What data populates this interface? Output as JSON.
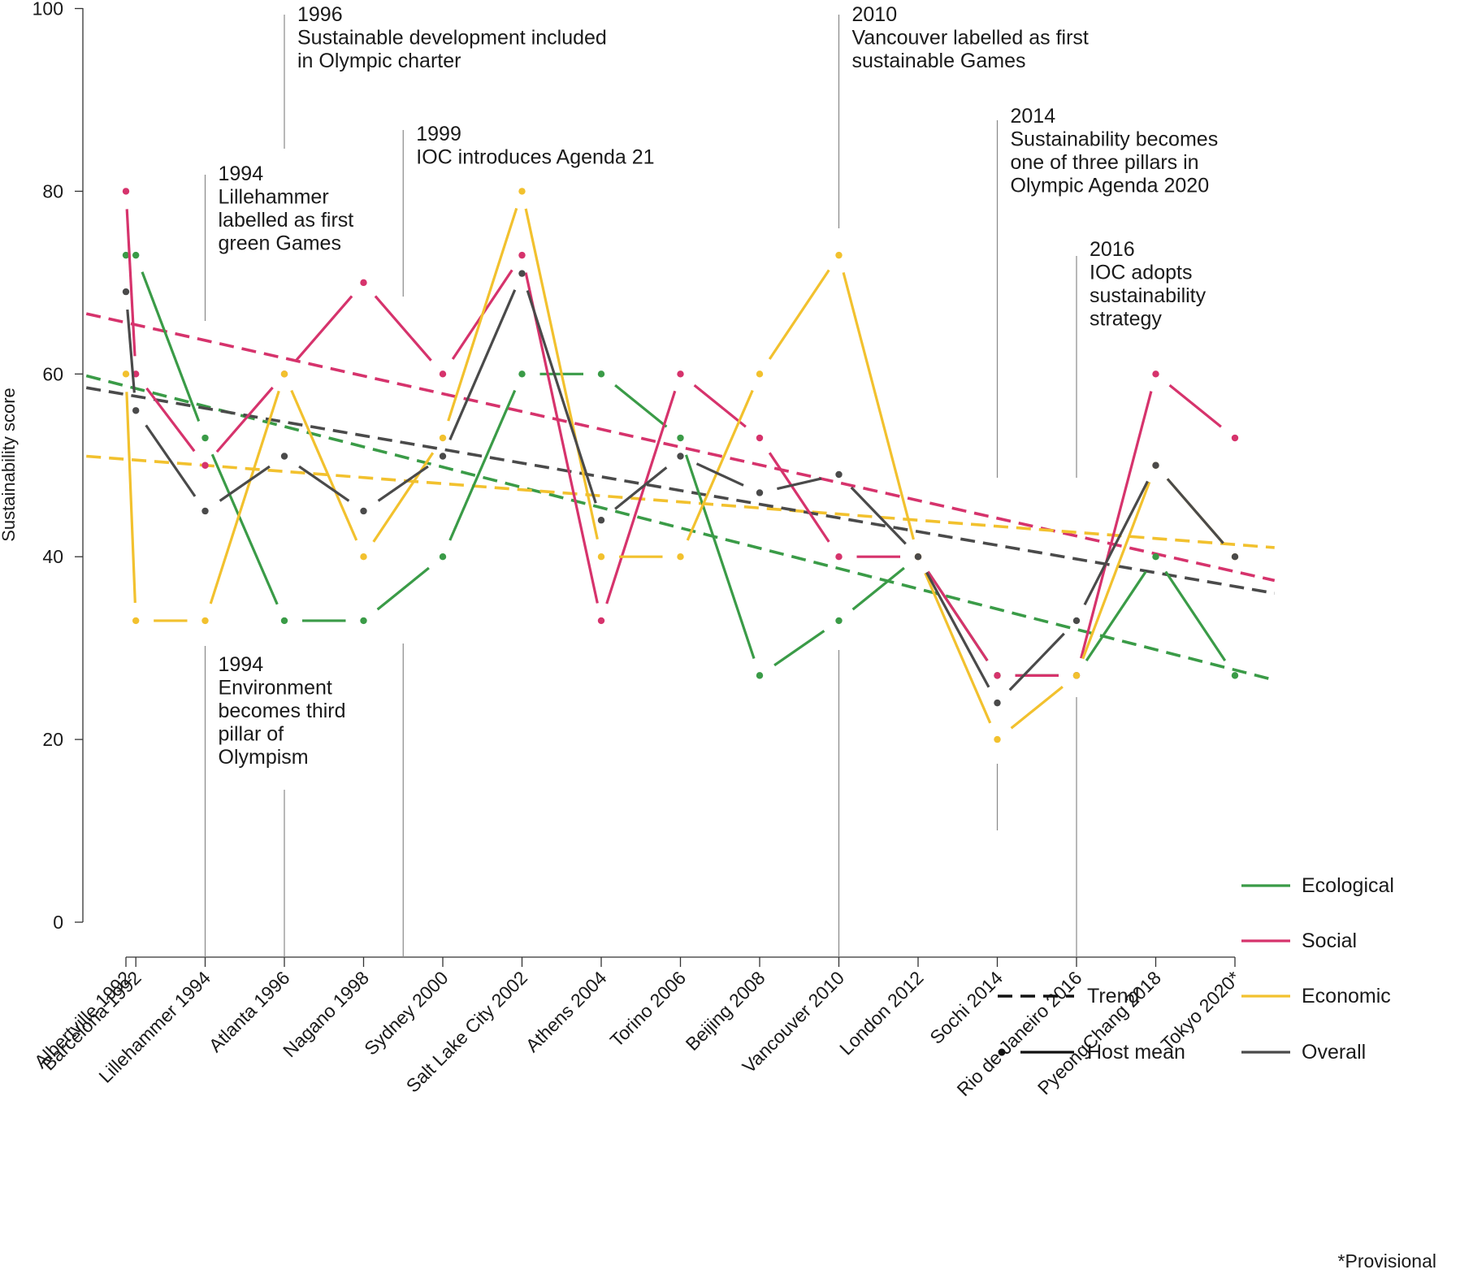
{
  "chart_data": {
    "type": "line",
    "ylabel": "Sustainability score",
    "ylim": [
      0,
      100
    ],
    "yticks": [
      0,
      20,
      40,
      60,
      80,
      100
    ],
    "categories": [
      "Albertville 1992",
      "Barcelona 1992",
      "Lillehammer 1994",
      "Atlanta 1996",
      "Nagano 1998",
      "Sydney 2000",
      "Salt Lake City 2002",
      "Athens 2004",
      "Torino 2006",
      "Beijing 2008",
      "Vancouver 2010",
      "London 2012",
      "Sochi 2014",
      "Rio de Janeiro 2016",
      "PyeongChang 2018",
      "Tokyo 2020*"
    ],
    "x": [
      1992.0,
      1992.25,
      1994,
      1996,
      1998,
      2000,
      2002,
      2004,
      2006,
      2008,
      2010,
      2012,
      2014,
      2016,
      2018,
      2020
    ],
    "series": [
      {
        "name": "Ecological",
        "color": "#3a9b47",
        "values": [
          73,
          73,
          53,
          33,
          33,
          40,
          60,
          60,
          53,
          27,
          33,
          40,
          27,
          27,
          40,
          27
        ],
        "trend": {
          "start": [
            1991,
            59.8
          ],
          "end": [
            2021,
            26.5
          ]
        }
      },
      {
        "name": "Social",
        "color": "#d6336c",
        "values": [
          80,
          60,
          50,
          60,
          70,
          60,
          73,
          33,
          60,
          53,
          40,
          40,
          27,
          27,
          60,
          53
        ],
        "trend": {
          "start": [
            1991,
            66.6
          ],
          "end": [
            2021,
            37.4
          ]
        }
      },
      {
        "name": "Economic",
        "color": "#f2c12e",
        "values": [
          60,
          33,
          33,
          60,
          40,
          53,
          80,
          40,
          40,
          60,
          73,
          40,
          20,
          27,
          50,
          40
        ],
        "trend": {
          "start": [
            1991,
            51.0
          ],
          "end": [
            2021,
            41.0
          ]
        }
      },
      {
        "name": "Overall",
        "color": "#4a4a4a",
        "values": [
          69,
          56,
          45,
          51,
          45,
          51,
          71,
          44,
          51,
          47,
          49,
          40,
          24,
          33,
          50,
          40
        ],
        "trend": {
          "start": [
            1991,
            58.5
          ],
          "end": [
            2021,
            36.0
          ]
        }
      }
    ],
    "annotations": [
      {
        "year": 1994,
        "text": [
          "1994",
          "Lillehammer",
          "labelled as first",
          "green Games"
        ],
        "position": "above"
      },
      {
        "year": 1994,
        "text": [
          "1994",
          "Environment",
          "becomes third",
          "pillar of",
          "Olympism"
        ],
        "position": "below"
      },
      {
        "year": 1996,
        "text": [
          "1996",
          "Sustainable development included",
          "in Olympic charter"
        ],
        "position": "above"
      },
      {
        "year": 1999,
        "text": [
          "1999",
          "IOC introduces Agenda 21"
        ],
        "position": "above"
      },
      {
        "year": 2010,
        "text": [
          "2010",
          "Vancouver labelled as first",
          "sustainable Games"
        ],
        "position": "above"
      },
      {
        "year": 2014,
        "text": [
          "2014",
          "Sustainability becomes",
          "one of three pillars in",
          "Olympic Agenda 2020"
        ],
        "position": "above"
      },
      {
        "year": 2016,
        "text": [
          "2016",
          "IOC adopts",
          "sustainability",
          "strategy"
        ],
        "position": "above"
      }
    ],
    "legend": {
      "trend_label": "Trend",
      "host_mean_label": "Host mean",
      "placement": "bottom-right"
    },
    "footnote": "*Provisional"
  }
}
